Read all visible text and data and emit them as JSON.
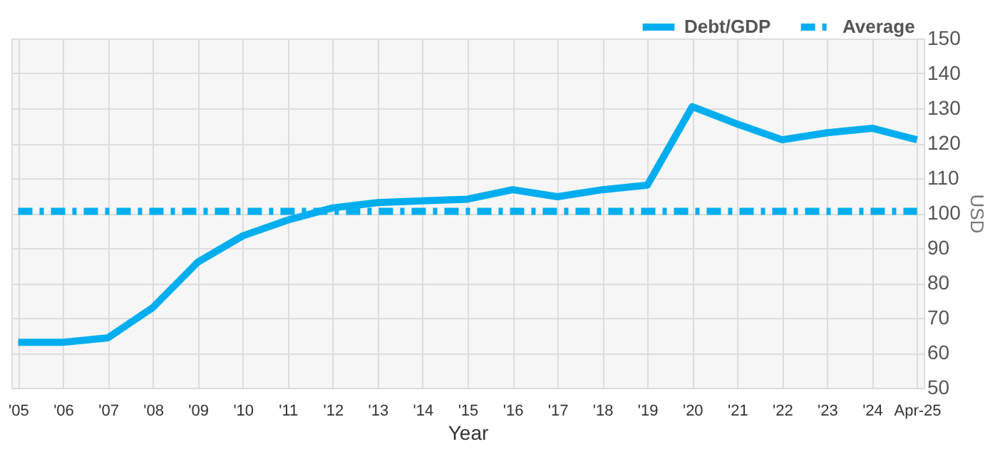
{
  "chart_data": {
    "type": "line",
    "xlabel": "Year",
    "ylabel": "USD",
    "categories": [
      "'05",
      "'06",
      "'07",
      "'08",
      "'09",
      "'10",
      "'11",
      "'12",
      "'13",
      "'14",
      "'15",
      "'16",
      "'17",
      "'18",
      "'19",
      "'20",
      "'21",
      "'22",
      "'23",
      "'24",
      "Apr-25"
    ],
    "series": [
      {
        "name": "Debt/GDP",
        "color": "#00aeef",
        "line_style": "solid",
        "values": [
          63,
          63,
          64.3,
          73,
          86,
          93.5,
          98,
          101.5,
          103,
          103.5,
          104,
          106.7,
          104.7,
          106.7,
          108,
          130.5,
          125.5,
          121,
          123,
          124.3,
          121
        ]
      },
      {
        "name": "Average",
        "color": "#00aeef",
        "line_style": "dashed",
        "values": [
          100.5,
          100.5,
          100.5,
          100.5,
          100.5,
          100.5,
          100.5,
          100.5,
          100.5,
          100.5,
          100.5,
          100.5,
          100.5,
          100.5,
          100.5,
          100.5,
          100.5,
          100.5,
          100.5,
          100.5,
          100.5
        ]
      }
    ],
    "ylim": [
      50,
      150
    ],
    "yticks": [
      50,
      60,
      70,
      80,
      90,
      100,
      110,
      120,
      130,
      140,
      150
    ],
    "grid": true,
    "legend": "top right",
    "marker": "none"
  }
}
